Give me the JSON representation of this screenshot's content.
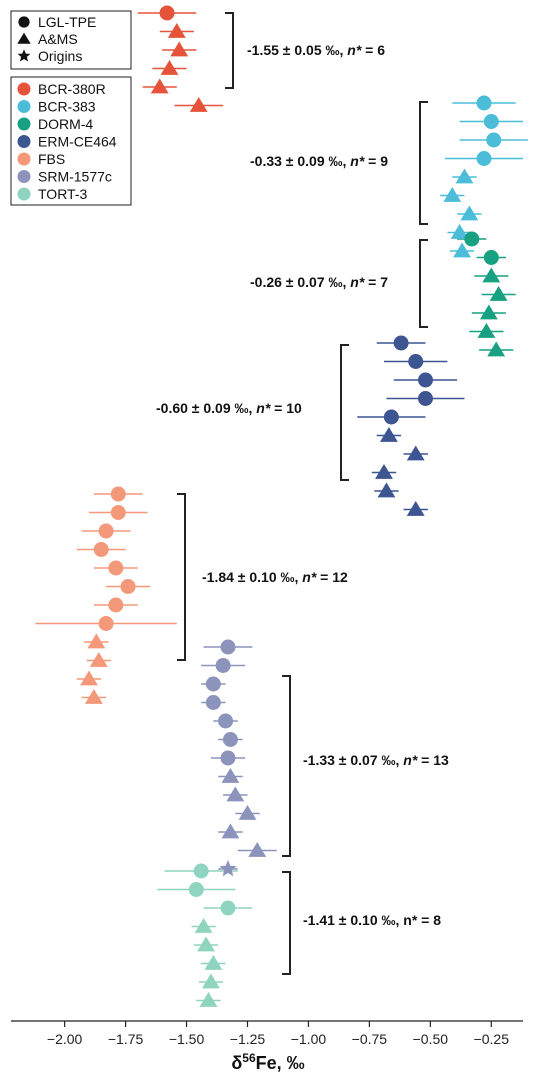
{
  "chart_data": {
    "type": "scatter",
    "title": "",
    "xlabel": {
      "prefix": "δ",
      "sup": "56",
      "suffix": "Fe, ‰"
    },
    "ylabel": "",
    "xlim": [
      -2.22,
      -0.12
    ],
    "x_ticks": [
      -2.0,
      -1.75,
      -1.5,
      -1.25,
      -1.0,
      -0.75,
      -0.5,
      -0.25
    ],
    "x_tick_labels": [
      "−2.00",
      "−1.75",
      "−1.50",
      "−1.25",
      "−1.00",
      "−0.75",
      "−0.50",
      "−0.25"
    ],
    "grid": false,
    "legend_position": "top-left",
    "legend_methods": [
      {
        "name": "LGL-TPE",
        "marker": "circle"
      },
      {
        "name": "A&MS",
        "marker": "triangle"
      },
      {
        "name": "Origins",
        "marker": "star"
      }
    ],
    "series": [
      {
        "name": "BCR-380R",
        "color": "#e5533a",
        "points": [
          {
            "x": -1.58,
            "e": 0.12,
            "m": "circle"
          },
          {
            "x": -1.54,
            "e": 0.07,
            "m": "triangle"
          },
          {
            "x": -1.53,
            "e": 0.07,
            "m": "triangle"
          },
          {
            "x": -1.57,
            "e": 0.07,
            "m": "triangle"
          },
          {
            "x": -1.61,
            "e": 0.07,
            "m": "triangle"
          },
          {
            "x": -1.45,
            "e": 0.1,
            "m": "triangle"
          }
        ]
      },
      {
        "name": "BCR-383",
        "color": "#4cbdd9",
        "points": [
          {
            "x": -0.28,
            "e": 0.13,
            "m": "circle"
          },
          {
            "x": -0.25,
            "e": 0.13,
            "m": "circle"
          },
          {
            "x": -0.24,
            "e": 0.14,
            "m": "circle"
          },
          {
            "x": -0.28,
            "e": 0.16,
            "m": "circle"
          },
          {
            "x": -0.36,
            "e": 0.05,
            "m": "triangle"
          },
          {
            "x": -0.41,
            "e": 0.05,
            "m": "triangle"
          },
          {
            "x": -0.34,
            "e": 0.05,
            "m": "triangle"
          },
          {
            "x": -0.38,
            "e": 0.05,
            "m": "triangle"
          },
          {
            "x": -0.37,
            "e": 0.05,
            "m": "triangle"
          }
        ]
      },
      {
        "name": "DORM-4",
        "color": "#17a082",
        "points": [
          {
            "x": -0.33,
            "e": 0.06,
            "m": "circle"
          },
          {
            "x": -0.25,
            "e": 0.06,
            "m": "circle"
          },
          {
            "x": -0.25,
            "e": 0.07,
            "m": "triangle"
          },
          {
            "x": -0.22,
            "e": 0.07,
            "m": "triangle"
          },
          {
            "x": -0.26,
            "e": 0.07,
            "m": "triangle"
          },
          {
            "x": -0.27,
            "e": 0.07,
            "m": "triangle"
          },
          {
            "x": -0.23,
            "e": 0.07,
            "m": "triangle"
          }
        ]
      },
      {
        "name": "ERM-CE464",
        "color": "#3d5590",
        "points": [
          {
            "x": -0.62,
            "e": 0.1,
            "m": "circle"
          },
          {
            "x": -0.56,
            "e": 0.13,
            "m": "circle"
          },
          {
            "x": -0.52,
            "e": 0.13,
            "m": "circle"
          },
          {
            "x": -0.52,
            "e": 0.16,
            "m": "circle"
          },
          {
            "x": -0.66,
            "e": 0.14,
            "m": "circle"
          },
          {
            "x": -0.67,
            "e": 0.05,
            "m": "triangle"
          },
          {
            "x": -0.56,
            "e": 0.05,
            "m": "triangle"
          },
          {
            "x": -0.69,
            "e": 0.05,
            "m": "triangle"
          },
          {
            "x": -0.68,
            "e": 0.05,
            "m": "triangle"
          },
          {
            "x": -0.56,
            "e": 0.05,
            "m": "triangle"
          }
        ]
      },
      {
        "name": "FBS",
        "color": "#f4987a",
        "points": [
          {
            "x": -1.78,
            "e": 0.1,
            "m": "circle"
          },
          {
            "x": -1.78,
            "e": 0.12,
            "m": "circle"
          },
          {
            "x": -1.83,
            "e": 0.1,
            "m": "circle"
          },
          {
            "x": -1.85,
            "e": 0.1,
            "m": "circle"
          },
          {
            "x": -1.79,
            "e": 0.09,
            "m": "circle"
          },
          {
            "x": -1.74,
            "e": 0.09,
            "m": "circle"
          },
          {
            "x": -1.79,
            "e": 0.09,
            "m": "circle"
          },
          {
            "x": -1.83,
            "e": 0.29,
            "m": "circle"
          },
          {
            "x": -1.87,
            "e": 0.05,
            "m": "triangle"
          },
          {
            "x": -1.86,
            "e": 0.05,
            "m": "triangle"
          },
          {
            "x": -1.9,
            "e": 0.05,
            "m": "triangle"
          },
          {
            "x": -1.88,
            "e": 0.05,
            "m": "triangle"
          }
        ]
      },
      {
        "name": "SRM-1577c",
        "color": "#8c94bc",
        "points": [
          {
            "x": -1.33,
            "e": 0.1,
            "m": "circle"
          },
          {
            "x": -1.35,
            "e": 0.09,
            "m": "circle"
          },
          {
            "x": -1.39,
            "e": 0.05,
            "m": "circle"
          },
          {
            "x": -1.39,
            "e": 0.05,
            "m": "circle"
          },
          {
            "x": -1.34,
            "e": 0.05,
            "m": "circle"
          },
          {
            "x": -1.32,
            "e": 0.05,
            "m": "circle"
          },
          {
            "x": -1.33,
            "e": 0.07,
            "m": "circle"
          },
          {
            "x": -1.32,
            "e": 0.05,
            "m": "triangle"
          },
          {
            "x": -1.3,
            "e": 0.05,
            "m": "triangle"
          },
          {
            "x": -1.25,
            "e": 0.05,
            "m": "triangle"
          },
          {
            "x": -1.32,
            "e": 0.05,
            "m": "triangle"
          },
          {
            "x": -1.21,
            "e": 0.08,
            "m": "triangle"
          },
          {
            "x": -1.33,
            "e": 0.04,
            "m": "star"
          }
        ]
      },
      {
        "name": "TORT-3",
        "color": "#8fd4bf",
        "points": [
          {
            "x": -1.44,
            "e": 0.15,
            "m": "circle"
          },
          {
            "x": -1.46,
            "e": 0.16,
            "m": "circle"
          },
          {
            "x": -1.33,
            "e": 0.1,
            "m": "circle"
          },
          {
            "x": -1.43,
            "e": 0.05,
            "m": "triangle"
          },
          {
            "x": -1.42,
            "e": 0.05,
            "m": "triangle"
          },
          {
            "x": -1.39,
            "e": 0.05,
            "m": "triangle"
          },
          {
            "x": -1.4,
            "e": 0.05,
            "m": "triangle"
          },
          {
            "x": -1.41,
            "e": 0.05,
            "m": "triangle"
          }
        ]
      }
    ],
    "group_annotations": [
      {
        "series": "BCR-380R",
        "label": "-1.55 ± 0.05 ‰, ",
        "n_italic": "n*",
        "n_value": " = 6"
      },
      {
        "series": "BCR-383",
        "label": "-0.33 ± 0.09 ‰, ",
        "n_italic": "n*",
        "n_value": " = 9"
      },
      {
        "series": "DORM-4",
        "label": "-0.26 ± 0.07 ‰, ",
        "n_italic": "n*",
        "n_value": " = 7"
      },
      {
        "series": "ERM-CE464",
        "label": "-0.60 ± 0.09 ‰, ",
        "n_italic": "n*",
        "n_value": " = 10"
      },
      {
        "series": "FBS",
        "label": "-1.84 ± 0.10 ‰, ",
        "n_italic": "n*",
        "n_value": " = 12"
      },
      {
        "series": "SRM-1577c",
        "label": "-1.33 ± 0.07 ‰, ",
        "n_italic": "n*",
        "n_value": " = 13"
      },
      {
        "series": "TORT-3",
        "label": "-1.41 ± 0.10 ‰, ",
        "n_italic": "",
        "n_value": "n* = 8"
      }
    ]
  }
}
